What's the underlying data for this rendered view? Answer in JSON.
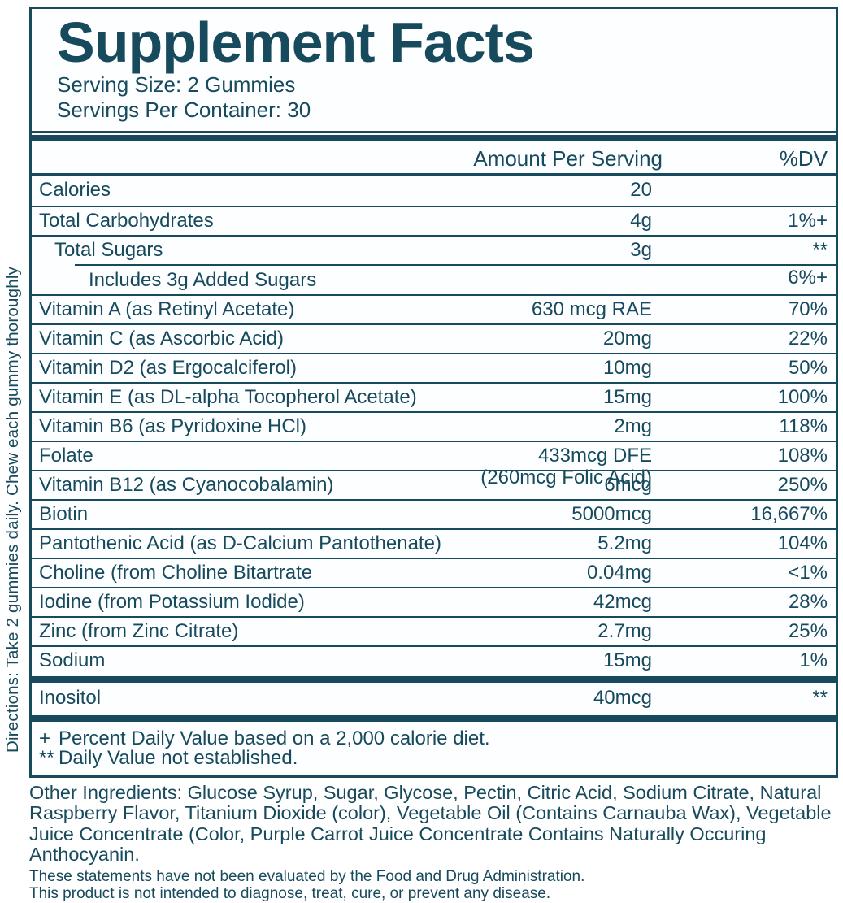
{
  "colors": {
    "ink": "#164a5c",
    "panel_bg": "#fdfeff"
  },
  "directions": "Directions: Take 2 gummies daily. Chew each gummy thoroughly",
  "header": {
    "title": "Supplement Facts",
    "serving_size": "Serving Size: 2 Gummies",
    "servings_per_container": "Servings Per Container: 30"
  },
  "columns": {
    "amount": "Amount Per Serving",
    "dv": "%DV"
  },
  "table": {
    "rows": [
      {
        "name": "Calories",
        "amount": "20",
        "dv": "",
        "indent": 0
      },
      {
        "name": "Total Carbohydrates",
        "amount": "4g",
        "dv": "1%+",
        "indent": 0
      },
      {
        "name": "Total Sugars",
        "amount": "3g",
        "dv": "**",
        "indent": 1
      },
      {
        "name": "Includes 3g Added Sugars",
        "amount": "",
        "dv": "6%+",
        "indent": 2,
        "partial_border": true
      },
      {
        "name": "Vitamin A (as Retinyl Acetate)",
        "amount": "630 mcg RAE",
        "dv": "70%",
        "indent": 0
      },
      {
        "name": "Vitamin C (as Ascorbic Acid)",
        "amount": "20mg",
        "dv": "22%",
        "indent": 0
      },
      {
        "name": "Vitamin D2 (as Ergocalciferol)",
        "amount": "10mg",
        "dv": "50%",
        "indent": 0
      },
      {
        "name": "Vitamin E (as DL-alpha Tocopherol Acetate)",
        "amount": "15mg",
        "dv": "100%",
        "indent": 0
      },
      {
        "name": "Vitamin B6 (as Pyridoxine HCl)",
        "amount": "2mg",
        "dv": "118%",
        "indent": 0
      },
      {
        "name": "Folate",
        "amount": "433mcg DFE",
        "amount2": "(260mcg Folic Acid)",
        "dv": "108%",
        "indent": 0
      },
      {
        "name": "Vitamin B12 (as Cyanocobalamin)",
        "amount": "6mcg",
        "dv": "250%",
        "indent": 0
      },
      {
        "name": "Biotin",
        "amount": "5000mcg",
        "dv": "16,667%",
        "indent": 0
      },
      {
        "name": "Pantothenic Acid (as D-Calcium Pantothenate)",
        "amount": "5.2mg",
        "dv": "104%",
        "indent": 0
      },
      {
        "name": "Choline (from Choline Bitartrate",
        "amount": "0.04mg",
        "dv": "<1%",
        "indent": 0
      },
      {
        "name": "Iodine (from Potassium Iodide)",
        "amount": "42mcg",
        "dv": "28%",
        "indent": 0
      },
      {
        "name": "Zinc (from Zinc Citrate)",
        "amount": "2.7mg",
        "dv": "25%",
        "indent": 0
      },
      {
        "name": "Sodium",
        "amount": "15mg",
        "dv": "1%",
        "indent": 0
      },
      {
        "name": "Inositol",
        "amount": "40mcg",
        "dv": "**",
        "indent": 0,
        "bar_before": true
      }
    ]
  },
  "footnotes": [
    {
      "symbol": "+",
      "text": "Percent Daily Value based on a 2,000 calorie diet."
    },
    {
      "symbol": "**",
      "text": "Daily Value not established."
    }
  ],
  "other_ingredients": "Other Ingredients: Glucose Syrup, Sugar, Glycose, Pectin, Citric Acid, Sodium Citrate, Natural Raspberry Flavor, Titanium Dioxide (color), Vegetable Oil (Contains Carnauba Wax), Vegetable Juice Concentrate (Color, Purple Carrot Juice Concentrate Contains Naturally Occuring Anthocyanin.",
  "disclaimers": [
    "These statements have not been evaluated by the Food and Drug Administration.",
    "This product is not intended to diagnose, treat, cure, or prevent any disease."
  ]
}
